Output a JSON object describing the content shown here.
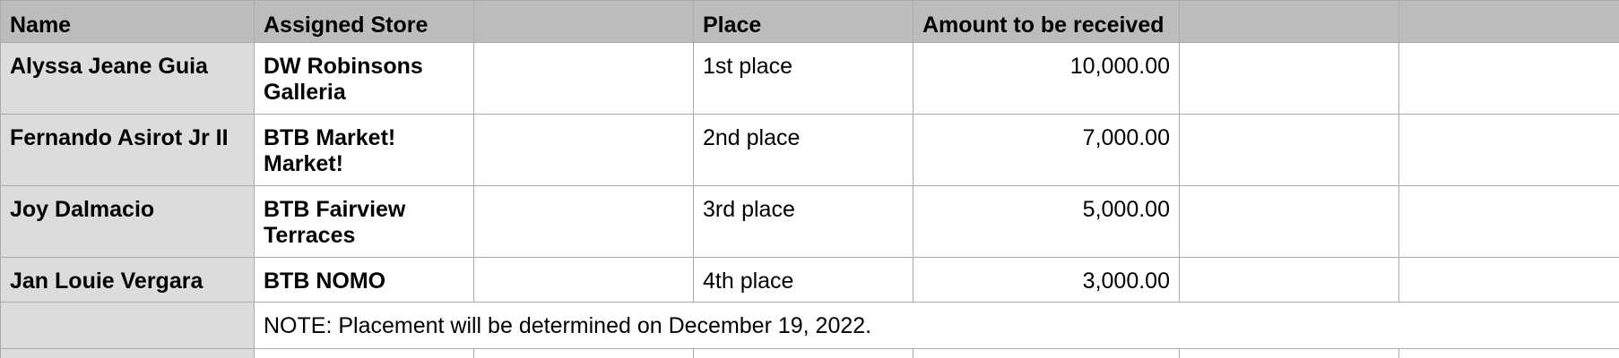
{
  "header": {
    "name": "Name",
    "assigned_store": "Assigned Store",
    "empty1": "",
    "place": "Place",
    "amount": "Amount to be received",
    "empty2": "",
    "empty3": ""
  },
  "rows": [
    {
      "name": "Alyssa Jeane Guia",
      "store_line1": "DW Robinsons",
      "store_line2": "Galleria",
      "place": "1st place",
      "amount": "10,000.00"
    },
    {
      "name": "Fernando Asirot Jr II",
      "store_line1": "BTB Market!",
      "store_line2": "Market!",
      "place": "2nd place",
      "amount": "7,000.00"
    },
    {
      "name": "Joy Dalmacio",
      "store_line1": "BTB Fairview",
      "store_line2": "Terraces",
      "place": "3rd place",
      "amount": "5,000.00"
    },
    {
      "name": "Jan Louie Vergara",
      "store_line1": "BTB NOMO",
      "store_line2": "",
      "place": "4th place",
      "amount": "3,000.00"
    }
  ],
  "note": "NOTE: Placement will be determined on December 19, 2022.",
  "colors": {
    "header_bg": "#bbbdbd",
    "name_col_bg": "#dcdcdc",
    "grid_line": "#aaaaaa"
  }
}
